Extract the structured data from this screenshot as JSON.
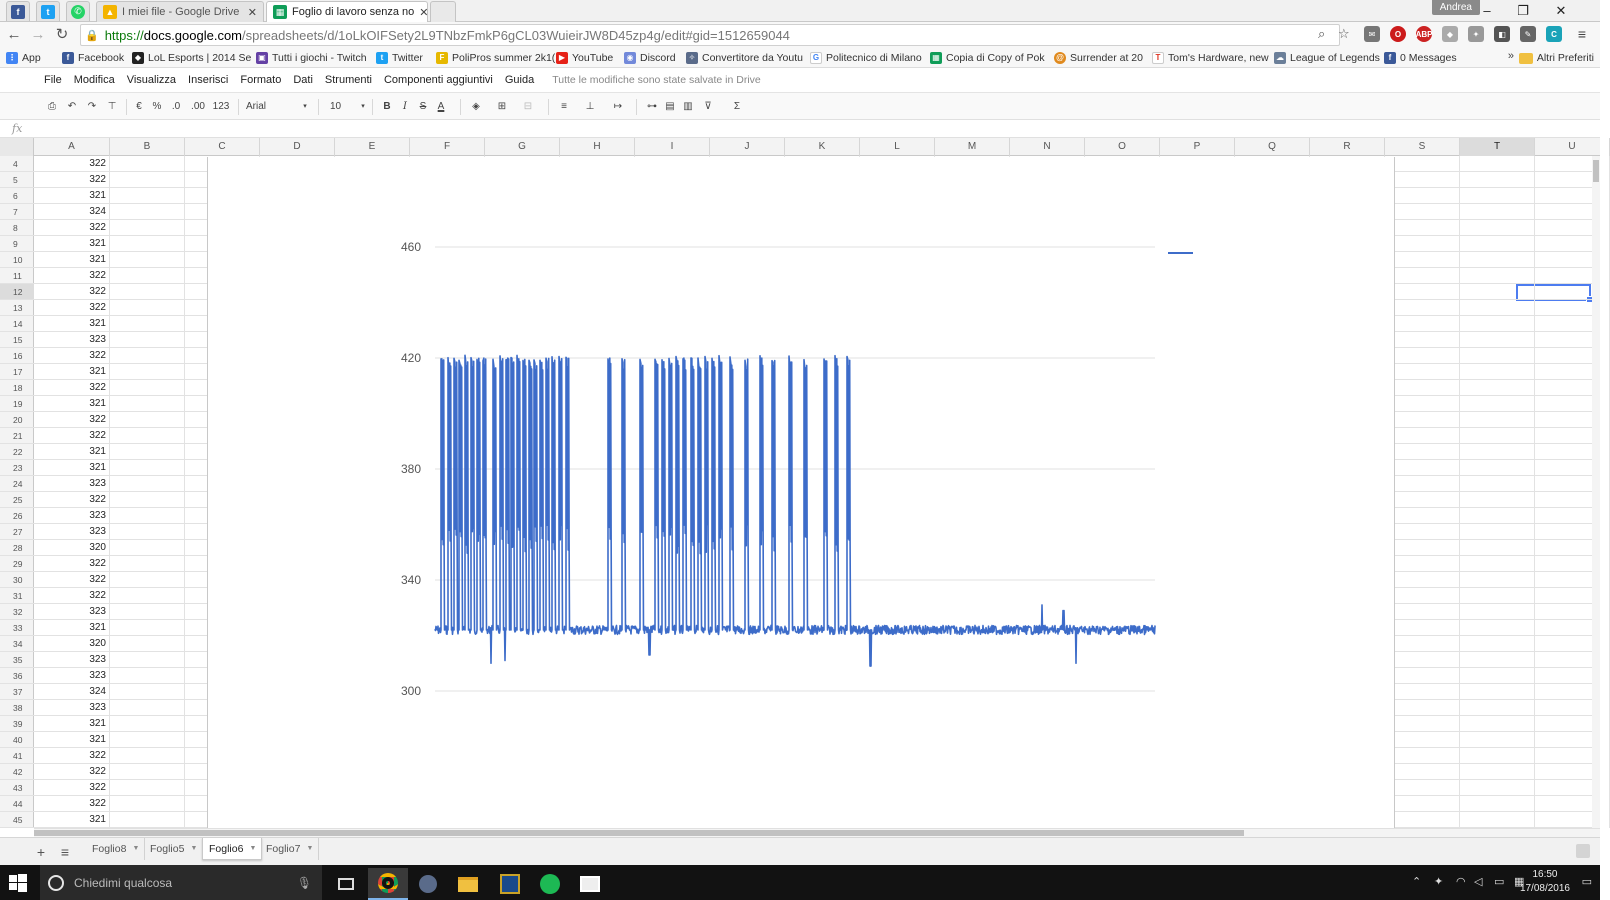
{
  "browser": {
    "tabs": [
      {
        "title": "I miei file - Google Drive"
      },
      {
        "title": "Foglio di lavoro senza no"
      }
    ],
    "user": "Andrea",
    "url": {
      "scheme": "https://",
      "host": "docs.google.com",
      "path": "/spreadsheets/d/1oLkOIFSety2L9TNbzFmkP6gCL03WuieirJW8D45zp4g/edit#gid=1512659044"
    },
    "bookmarks": [
      "App",
      "Facebook",
      "LoL Esports | 2014 Se",
      "Tutti i giochi - Twitch",
      "Twitter",
      "PoliPros summer 2k1(",
      "YouTube",
      "Discord",
      "Convertitore da Youtu",
      "Politecnico di Milano",
      "Copia di Copy of Pok",
      "Surrender at 20",
      "Tom's Hardware, new",
      "League of Legends",
      "0 Messages"
    ],
    "bookmarks_overflow": "»",
    "other_bookmarks": "Altri Preferiti"
  },
  "sheets": {
    "menu": [
      "File",
      "Modifica",
      "Visualizza",
      "Inserisci",
      "Formato",
      "Dati",
      "Strumenti",
      "Componenti aggiuntivi",
      "Guida"
    ],
    "save_status": "Tutte le modifiche sono state salvate in Drive",
    "toolbar": {
      "currency": "€",
      "percent": "%",
      "dec_less": ".0",
      "dec_more": ".00",
      "format_more": "123",
      "font": "Arial",
      "font_size": "10",
      "bold": "B",
      "italic": "I",
      "strike": "S",
      "text_color": "A",
      "sum": "Σ"
    },
    "formula_label": "fx",
    "columns": [
      "A",
      "B",
      "C",
      "D",
      "E",
      "F",
      "G",
      "H",
      "I",
      "J",
      "K",
      "L",
      "M",
      "N",
      "O",
      "P",
      "Q",
      "R",
      "S",
      "T",
      "U"
    ],
    "selected_column": "T",
    "selected_row": "12",
    "rows": [
      {
        "n": "4",
        "a": "322"
      },
      {
        "n": "5",
        "a": "322"
      },
      {
        "n": "6",
        "a": "321"
      },
      {
        "n": "7",
        "a": "324"
      },
      {
        "n": "8",
        "a": "322"
      },
      {
        "n": "9",
        "a": "321"
      },
      {
        "n": "10",
        "a": "321"
      },
      {
        "n": "11",
        "a": "322"
      },
      {
        "n": "12",
        "a": "322"
      },
      {
        "n": "13",
        "a": "322"
      },
      {
        "n": "14",
        "a": "321"
      },
      {
        "n": "15",
        "a": "323"
      },
      {
        "n": "16",
        "a": "322"
      },
      {
        "n": "17",
        "a": "321"
      },
      {
        "n": "18",
        "a": "322"
      },
      {
        "n": "19",
        "a": "321"
      },
      {
        "n": "20",
        "a": "322"
      },
      {
        "n": "21",
        "a": "322"
      },
      {
        "n": "22",
        "a": "321"
      },
      {
        "n": "23",
        "a": "321"
      },
      {
        "n": "24",
        "a": "323"
      },
      {
        "n": "25",
        "a": "322"
      },
      {
        "n": "26",
        "a": "323"
      },
      {
        "n": "27",
        "a": "323"
      },
      {
        "n": "28",
        "a": "320"
      },
      {
        "n": "29",
        "a": "322"
      },
      {
        "n": "30",
        "a": "322"
      },
      {
        "n": "31",
        "a": "322"
      },
      {
        "n": "32",
        "a": "323"
      },
      {
        "n": "33",
        "a": "321"
      },
      {
        "n": "34",
        "a": "320"
      },
      {
        "n": "35",
        "a": "323"
      },
      {
        "n": "36",
        "a": "323"
      },
      {
        "n": "37",
        "a": "324"
      },
      {
        "n": "38",
        "a": "323"
      },
      {
        "n": "39",
        "a": "321"
      },
      {
        "n": "40",
        "a": "321"
      },
      {
        "n": "41",
        "a": "322"
      },
      {
        "n": "42",
        "a": "322"
      },
      {
        "n": "43",
        "a": "322"
      },
      {
        "n": "44",
        "a": "322"
      },
      {
        "n": "45",
        "a": "321"
      }
    ],
    "sheet_tabs": [
      "Foglio8",
      "Foglio5",
      "Foglio6",
      "Foglio7"
    ],
    "active_sheet": "Foglio6"
  },
  "chart_data": {
    "type": "line",
    "ylim": [
      300,
      460
    ],
    "yticks": [
      460,
      420,
      380,
      340,
      300
    ],
    "grid": true,
    "color": "#3d6cc9",
    "baseline": 322,
    "spike_peak": 420,
    "spike_shoulder": 360,
    "spike_x_fraction": [
      0.008,
      0.018,
      0.026,
      0.034,
      0.042,
      0.05,
      0.058,
      0.066,
      0.08,
      0.09,
      0.098,
      0.106,
      0.114,
      0.122,
      0.13,
      0.138,
      0.146,
      0.154,
      0.162,
      0.172,
      0.182,
      0.24,
      0.26,
      0.285,
      0.305,
      0.315,
      0.325,
      0.335,
      0.345,
      0.355,
      0.365,
      0.375,
      0.385,
      0.395,
      0.41,
      0.43,
      0.452,
      0.468,
      0.492,
      0.512,
      0.54,
      0.556,
      0.572
    ],
    "dips": [
      {
        "x": 0.078,
        "y": 310
      },
      {
        "x": 0.098,
        "y": 311
      },
      {
        "x": 0.298,
        "y": 313
      },
      {
        "x": 0.605,
        "y": 309
      },
      {
        "x": 0.89,
        "y": 310
      }
    ],
    "small_spikes": [
      {
        "x": 0.309,
        "y": 327
      },
      {
        "x": 0.843,
        "y": 331
      },
      {
        "x": 0.873,
        "y": 329
      }
    ],
    "legend_swatch": "top-right"
  },
  "taskbar": {
    "search_placeholder": "Chiedimi qualcosa",
    "time": "16:50",
    "date": "17/08/2016"
  }
}
